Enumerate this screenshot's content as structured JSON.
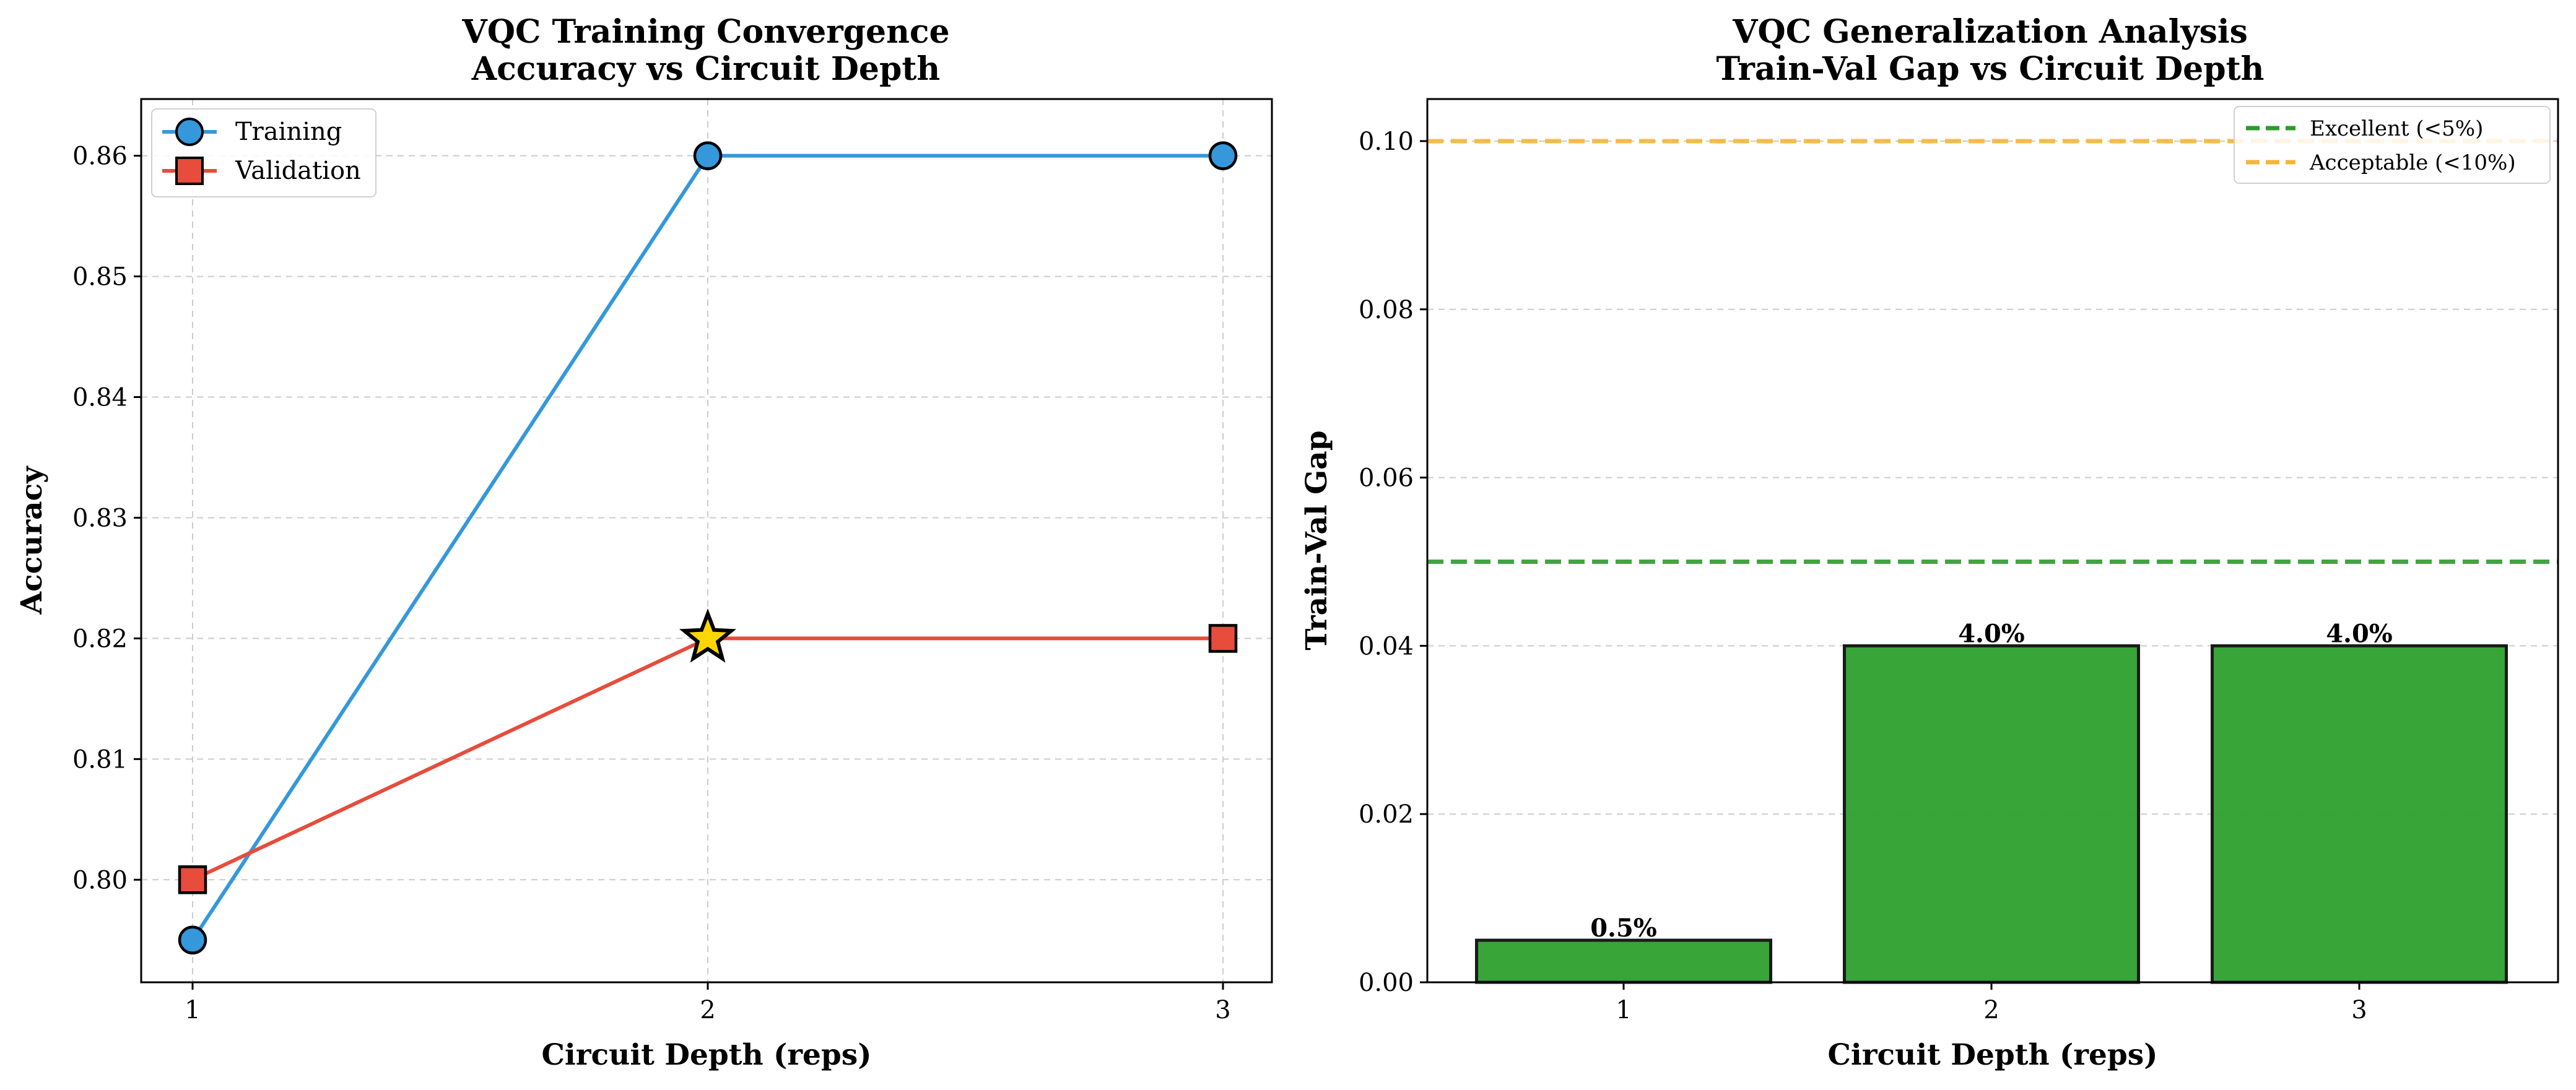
{
  "colors": {
    "training": "#3498db",
    "validation": "#e74c3c",
    "best_marker": "#ffd700",
    "bar": "#2ca02c",
    "excellent_line": "#2e9a2e",
    "acceptable_line": "#f5b53b",
    "grid": "#cccccc"
  },
  "chart_data": [
    {
      "type": "line",
      "title": "VQC Training Convergence\nAccuracy vs Circuit Depth",
      "title_lines": [
        "VQC Training Convergence",
        "Accuracy vs Circuit Depth"
      ],
      "xlabel": "Circuit Depth (reps)",
      "ylabel": "Accuracy",
      "x": [
        1,
        2,
        3
      ],
      "xticks": [
        "1",
        "2",
        "3"
      ],
      "yticks": [
        "0.80",
        "0.81",
        "0.82",
        "0.83",
        "0.84",
        "0.85",
        "0.86"
      ],
      "ylim": [
        0.7915,
        0.8647
      ],
      "grid": true,
      "legend_position": "upper left",
      "series": [
        {
          "name": "Training",
          "values": [
            0.795,
            0.86,
            0.86
          ],
          "marker": "circle"
        },
        {
          "name": "Validation",
          "values": [
            0.8,
            0.82,
            0.82
          ],
          "marker": "square"
        }
      ],
      "highlight": {
        "x": 2,
        "y": 0.82,
        "marker": "star",
        "series": "Validation"
      }
    },
    {
      "type": "bar",
      "title": "VQC Generalization Analysis\nTrain-Val Gap vs Circuit Depth",
      "title_lines": [
        "VQC Generalization Analysis",
        "Train-Val Gap vs Circuit Depth"
      ],
      "xlabel": "Circuit Depth (reps)",
      "ylabel": "Train-Val Gap",
      "categories": [
        "1",
        "2",
        "3"
      ],
      "values": [
        0.005,
        0.04,
        0.04
      ],
      "data_labels": [
        "0.5%",
        "4.0%",
        "4.0%"
      ],
      "yticks": [
        "0.00",
        "0.02",
        "0.04",
        "0.06",
        "0.08",
        "0.10"
      ],
      "ylim": [
        0,
        0.105
      ],
      "grid": true,
      "legend_position": "upper right",
      "reference_lines": [
        {
          "name": "Excellent (<5%)",
          "value": 0.05
        },
        {
          "name": "Acceptable (<10%)",
          "value": 0.1
        }
      ]
    }
  ]
}
